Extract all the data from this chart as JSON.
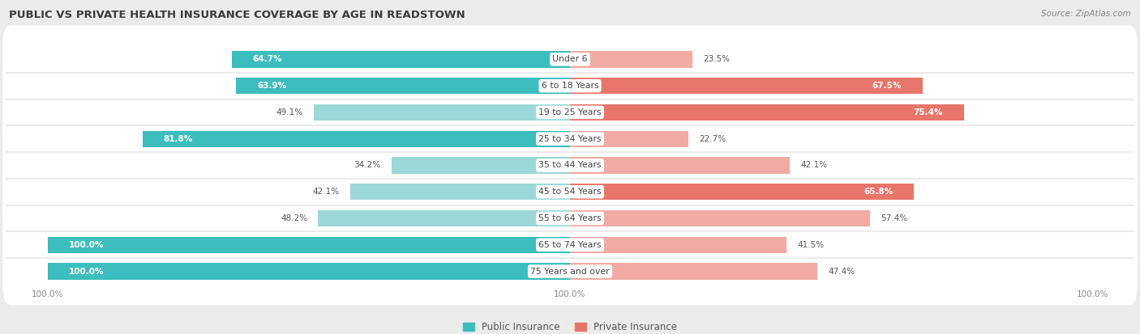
{
  "title": "PUBLIC VS PRIVATE HEALTH INSURANCE COVERAGE BY AGE IN READSTOWN",
  "source": "Source: ZipAtlas.com",
  "categories": [
    "Under 6",
    "6 to 18 Years",
    "19 to 25 Years",
    "25 to 34 Years",
    "35 to 44 Years",
    "45 to 54 Years",
    "55 to 64 Years",
    "65 to 74 Years",
    "75 Years and over"
  ],
  "public_values": [
    64.7,
    63.9,
    49.1,
    81.8,
    34.2,
    42.1,
    48.2,
    100.0,
    100.0
  ],
  "private_values": [
    23.5,
    67.5,
    75.4,
    22.7,
    42.1,
    65.8,
    57.4,
    41.5,
    47.4
  ],
  "public_color": "#3dbdbd",
  "private_color": "#e8756a",
  "public_color_light": "#9dd8d8",
  "private_color_light": "#f2aba4",
  "bg_color": "#ebebeb",
  "bar_height": 0.62,
  "max_value": 100.0,
  "legend_public": "Public Insurance",
  "legend_private": "Private Insurance",
  "scale": 50,
  "pub_solid_threshold": 60.0,
  "priv_solid_threshold": 60.0
}
